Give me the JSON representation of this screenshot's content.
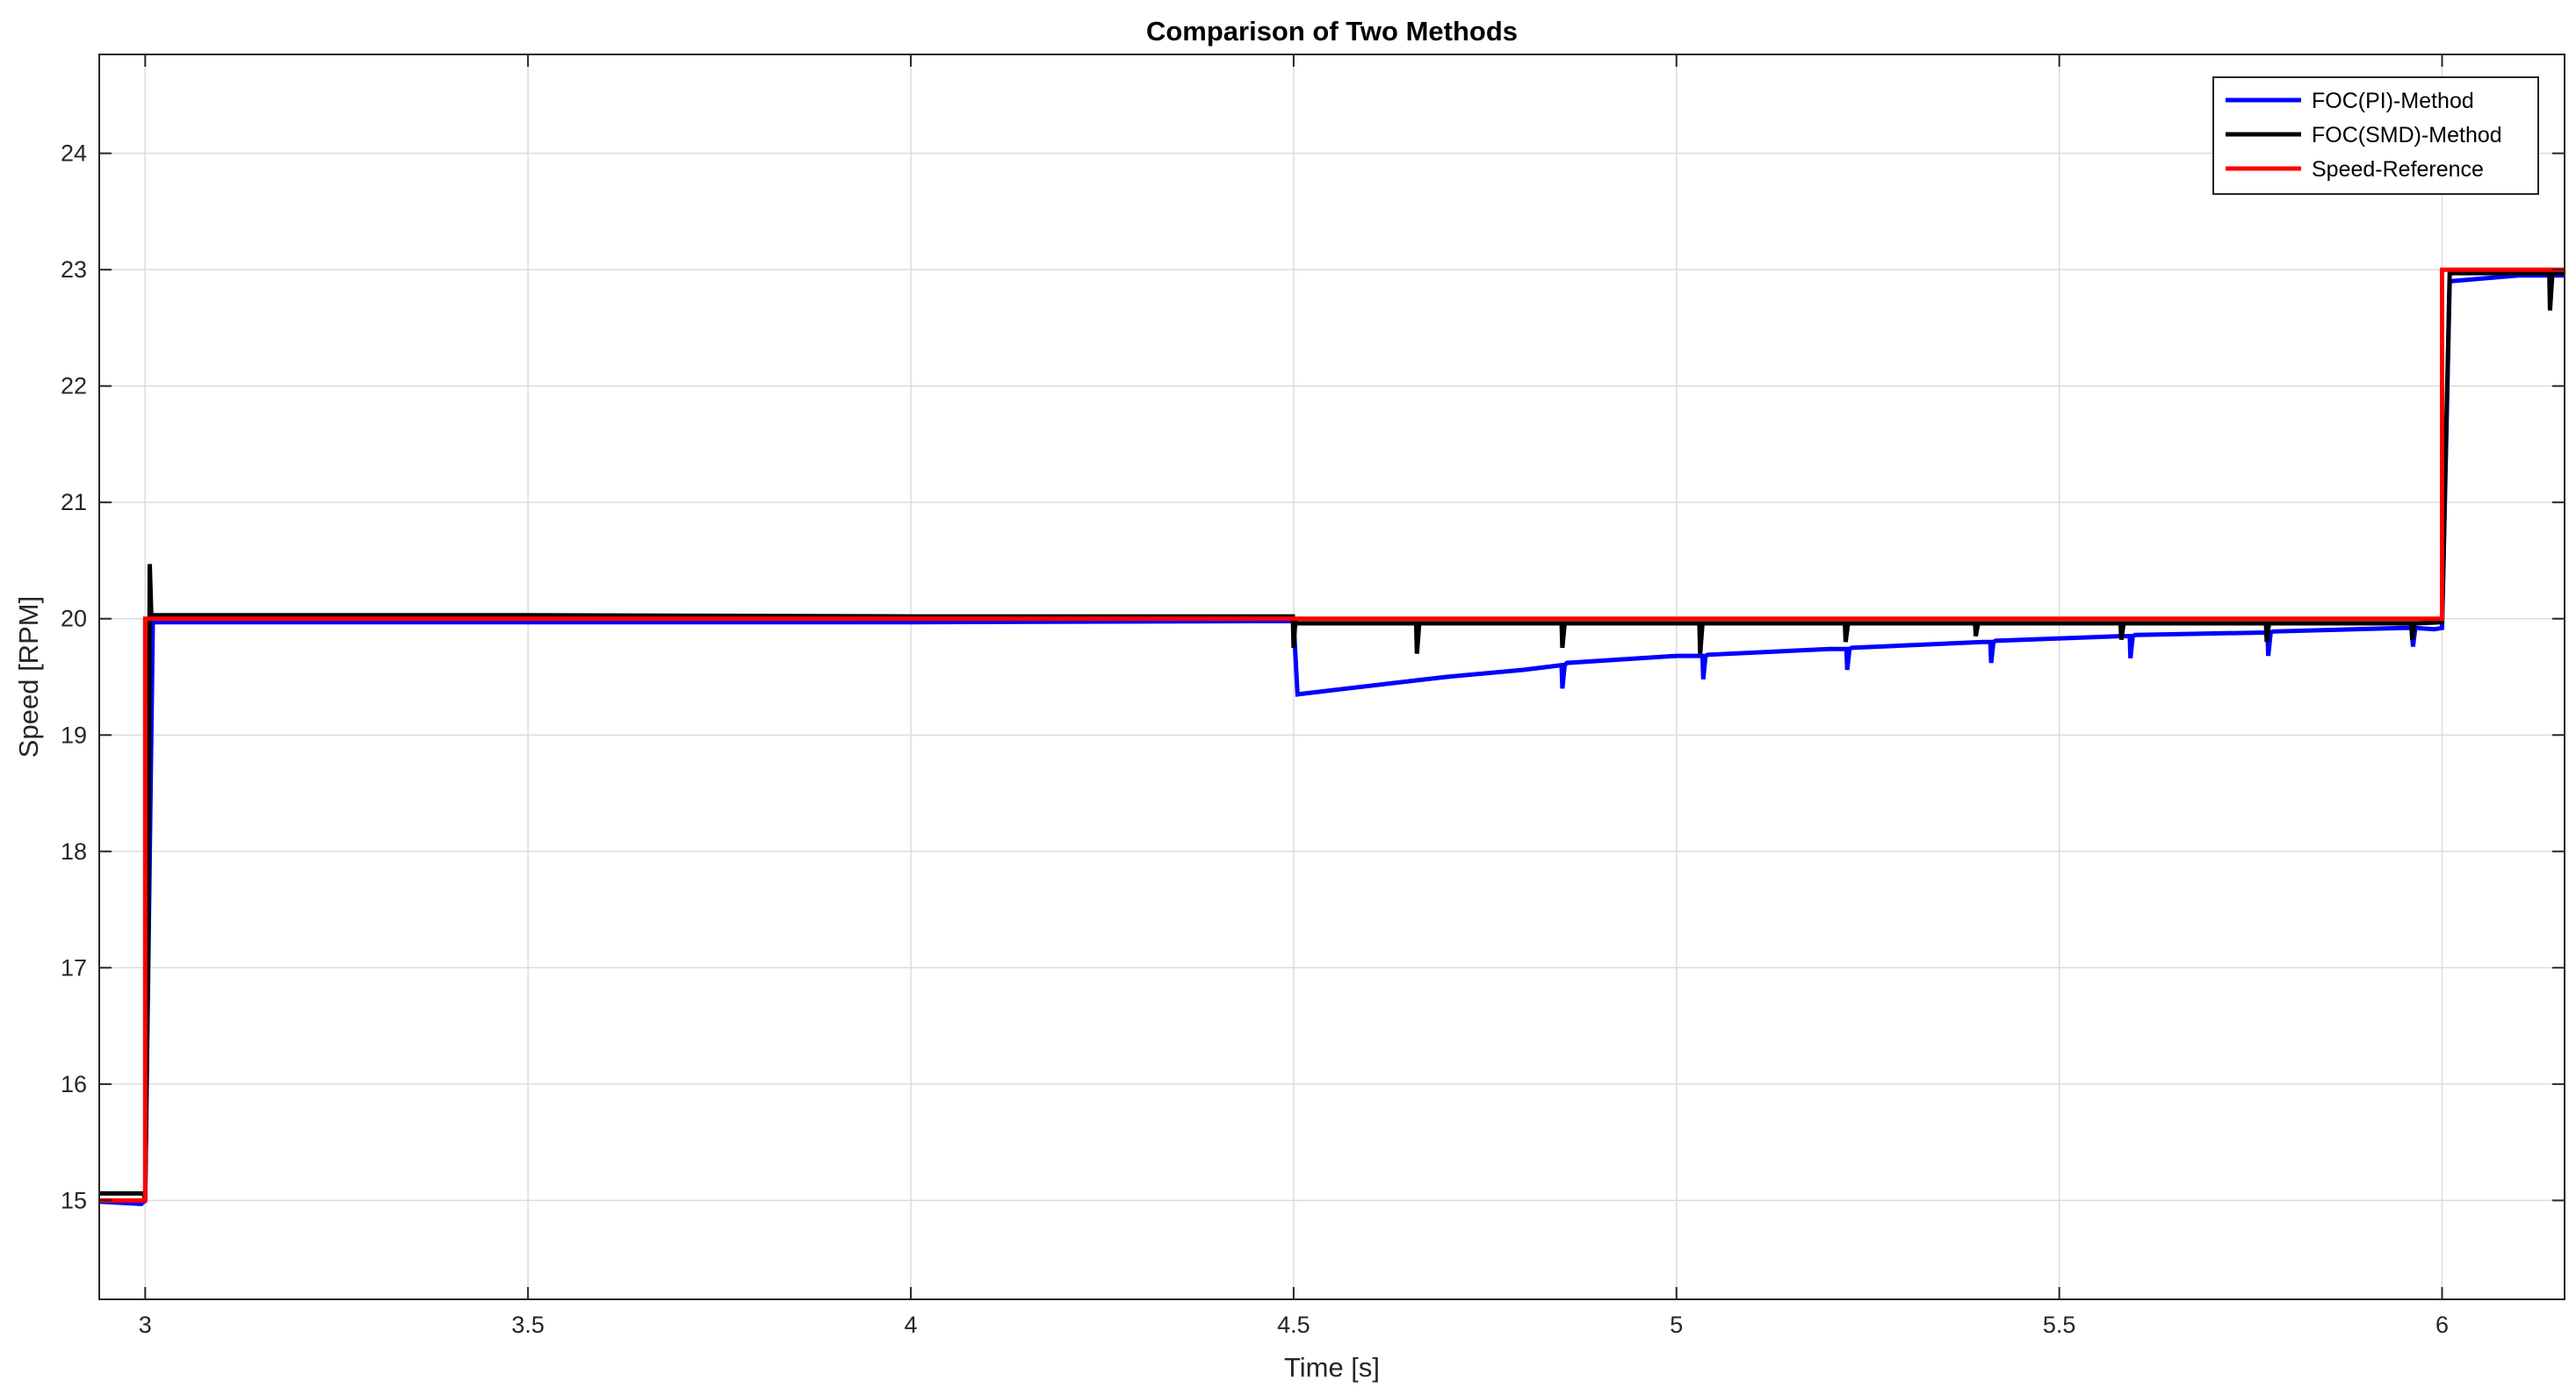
{
  "chart_data": {
    "type": "line",
    "title": "Comparison of Two Methods",
    "xlabel": "Time [s]",
    "ylabel": "Speed [RPM]",
    "xlim": [
      2.94,
      6.16
    ],
    "ylim": [
      14.15,
      24.85
    ],
    "xticks": [
      3,
      3.5,
      4,
      4.5,
      5,
      5.5,
      6
    ],
    "xtick_labels": [
      "3",
      "3.5",
      "4",
      "4.5",
      "5",
      "5.5",
      "6"
    ],
    "yticks": [
      15,
      16,
      17,
      18,
      19,
      20,
      21,
      22,
      23,
      24
    ],
    "ytick_labels": [
      "15",
      "16",
      "17",
      "18",
      "19",
      "20",
      "21",
      "22",
      "23",
      "24"
    ],
    "grid": true,
    "legend_position": "top-right",
    "series": [
      {
        "name": "FOC(PI)-Method",
        "color": "#0000ff",
        "x": [
          2.94,
          2.995,
          3.0,
          3.005,
          3.01,
          3.5,
          4.0,
          4.5,
          4.505,
          4.66,
          4.7,
          4.8,
          4.85,
          4.851,
          4.854,
          4.857,
          5.0,
          5.034,
          5.035,
          5.038,
          5.041,
          5.2,
          5.222,
          5.223,
          5.226,
          5.229,
          5.4,
          5.41,
          5.411,
          5.414,
          5.417,
          5.58,
          5.592,
          5.593,
          5.596,
          5.599,
          5.76,
          5.772,
          5.773,
          5.776,
          5.779,
          5.95,
          5.96,
          5.962,
          5.965,
          5.99,
          6.0,
          6.01,
          6.1,
          6.16
        ],
        "y": [
          14.99,
          14.97,
          15.0,
          17.5,
          19.97,
          19.97,
          19.97,
          19.98,
          19.35,
          19.47,
          19.5,
          19.56,
          19.6,
          19.4,
          19.6,
          19.62,
          19.68,
          19.68,
          19.48,
          19.68,
          19.69,
          19.74,
          19.74,
          19.56,
          19.74,
          19.75,
          19.8,
          19.8,
          19.62,
          19.8,
          19.81,
          19.85,
          19.85,
          19.66,
          19.85,
          19.86,
          19.88,
          19.88,
          19.68,
          19.88,
          19.89,
          19.92,
          19.92,
          19.76,
          19.92,
          19.91,
          19.92,
          22.9,
          22.95,
          22.95
        ]
      },
      {
        "name": "FOC(SMD)-Method",
        "color": "#000000",
        "x": [
          2.94,
          2.998,
          3.0,
          3.004,
          3.006,
          3.008,
          3.01,
          3.5,
          4.0,
          4.499,
          4.5,
          4.502,
          4.505,
          4.66,
          4.661,
          4.664,
          4.667,
          4.85,
          4.851,
          4.854,
          4.857,
          5.03,
          5.031,
          5.034,
          5.037,
          5.22,
          5.221,
          5.224,
          5.227,
          5.39,
          5.391,
          5.394,
          5.397,
          5.58,
          5.581,
          5.584,
          5.587,
          5.77,
          5.771,
          5.774,
          5.777,
          5.96,
          5.961,
          5.964,
          5.967,
          6.0,
          6.01,
          6.14,
          6.141,
          6.144,
          6.147,
          6.16
        ],
        "y": [
          15.06,
          15.06,
          15.0,
          17.2,
          20.47,
          20.02,
          20.03,
          20.03,
          20.02,
          20.02,
          19.75,
          19.97,
          19.96,
          19.96,
          19.7,
          19.96,
          19.96,
          19.96,
          19.75,
          19.96,
          19.96,
          19.96,
          19.7,
          19.96,
          19.96,
          19.96,
          19.8,
          19.96,
          19.96,
          19.96,
          19.85,
          19.96,
          19.96,
          19.96,
          19.82,
          19.96,
          19.96,
          19.96,
          19.8,
          19.96,
          19.96,
          19.96,
          19.82,
          19.96,
          19.96,
          19.97,
          22.97,
          22.97,
          22.65,
          22.97,
          22.97,
          22.97
        ]
      },
      {
        "name": "Speed-Reference",
        "color": "#ff0000",
        "x": [
          2.94,
          3.0,
          3.0,
          4.5,
          4.5,
          6.0,
          6.0,
          6.16
        ],
        "y": [
          15.0,
          15.0,
          20.0,
          20.0,
          20.0,
          20.0,
          23.0,
          23.0
        ]
      }
    ]
  }
}
